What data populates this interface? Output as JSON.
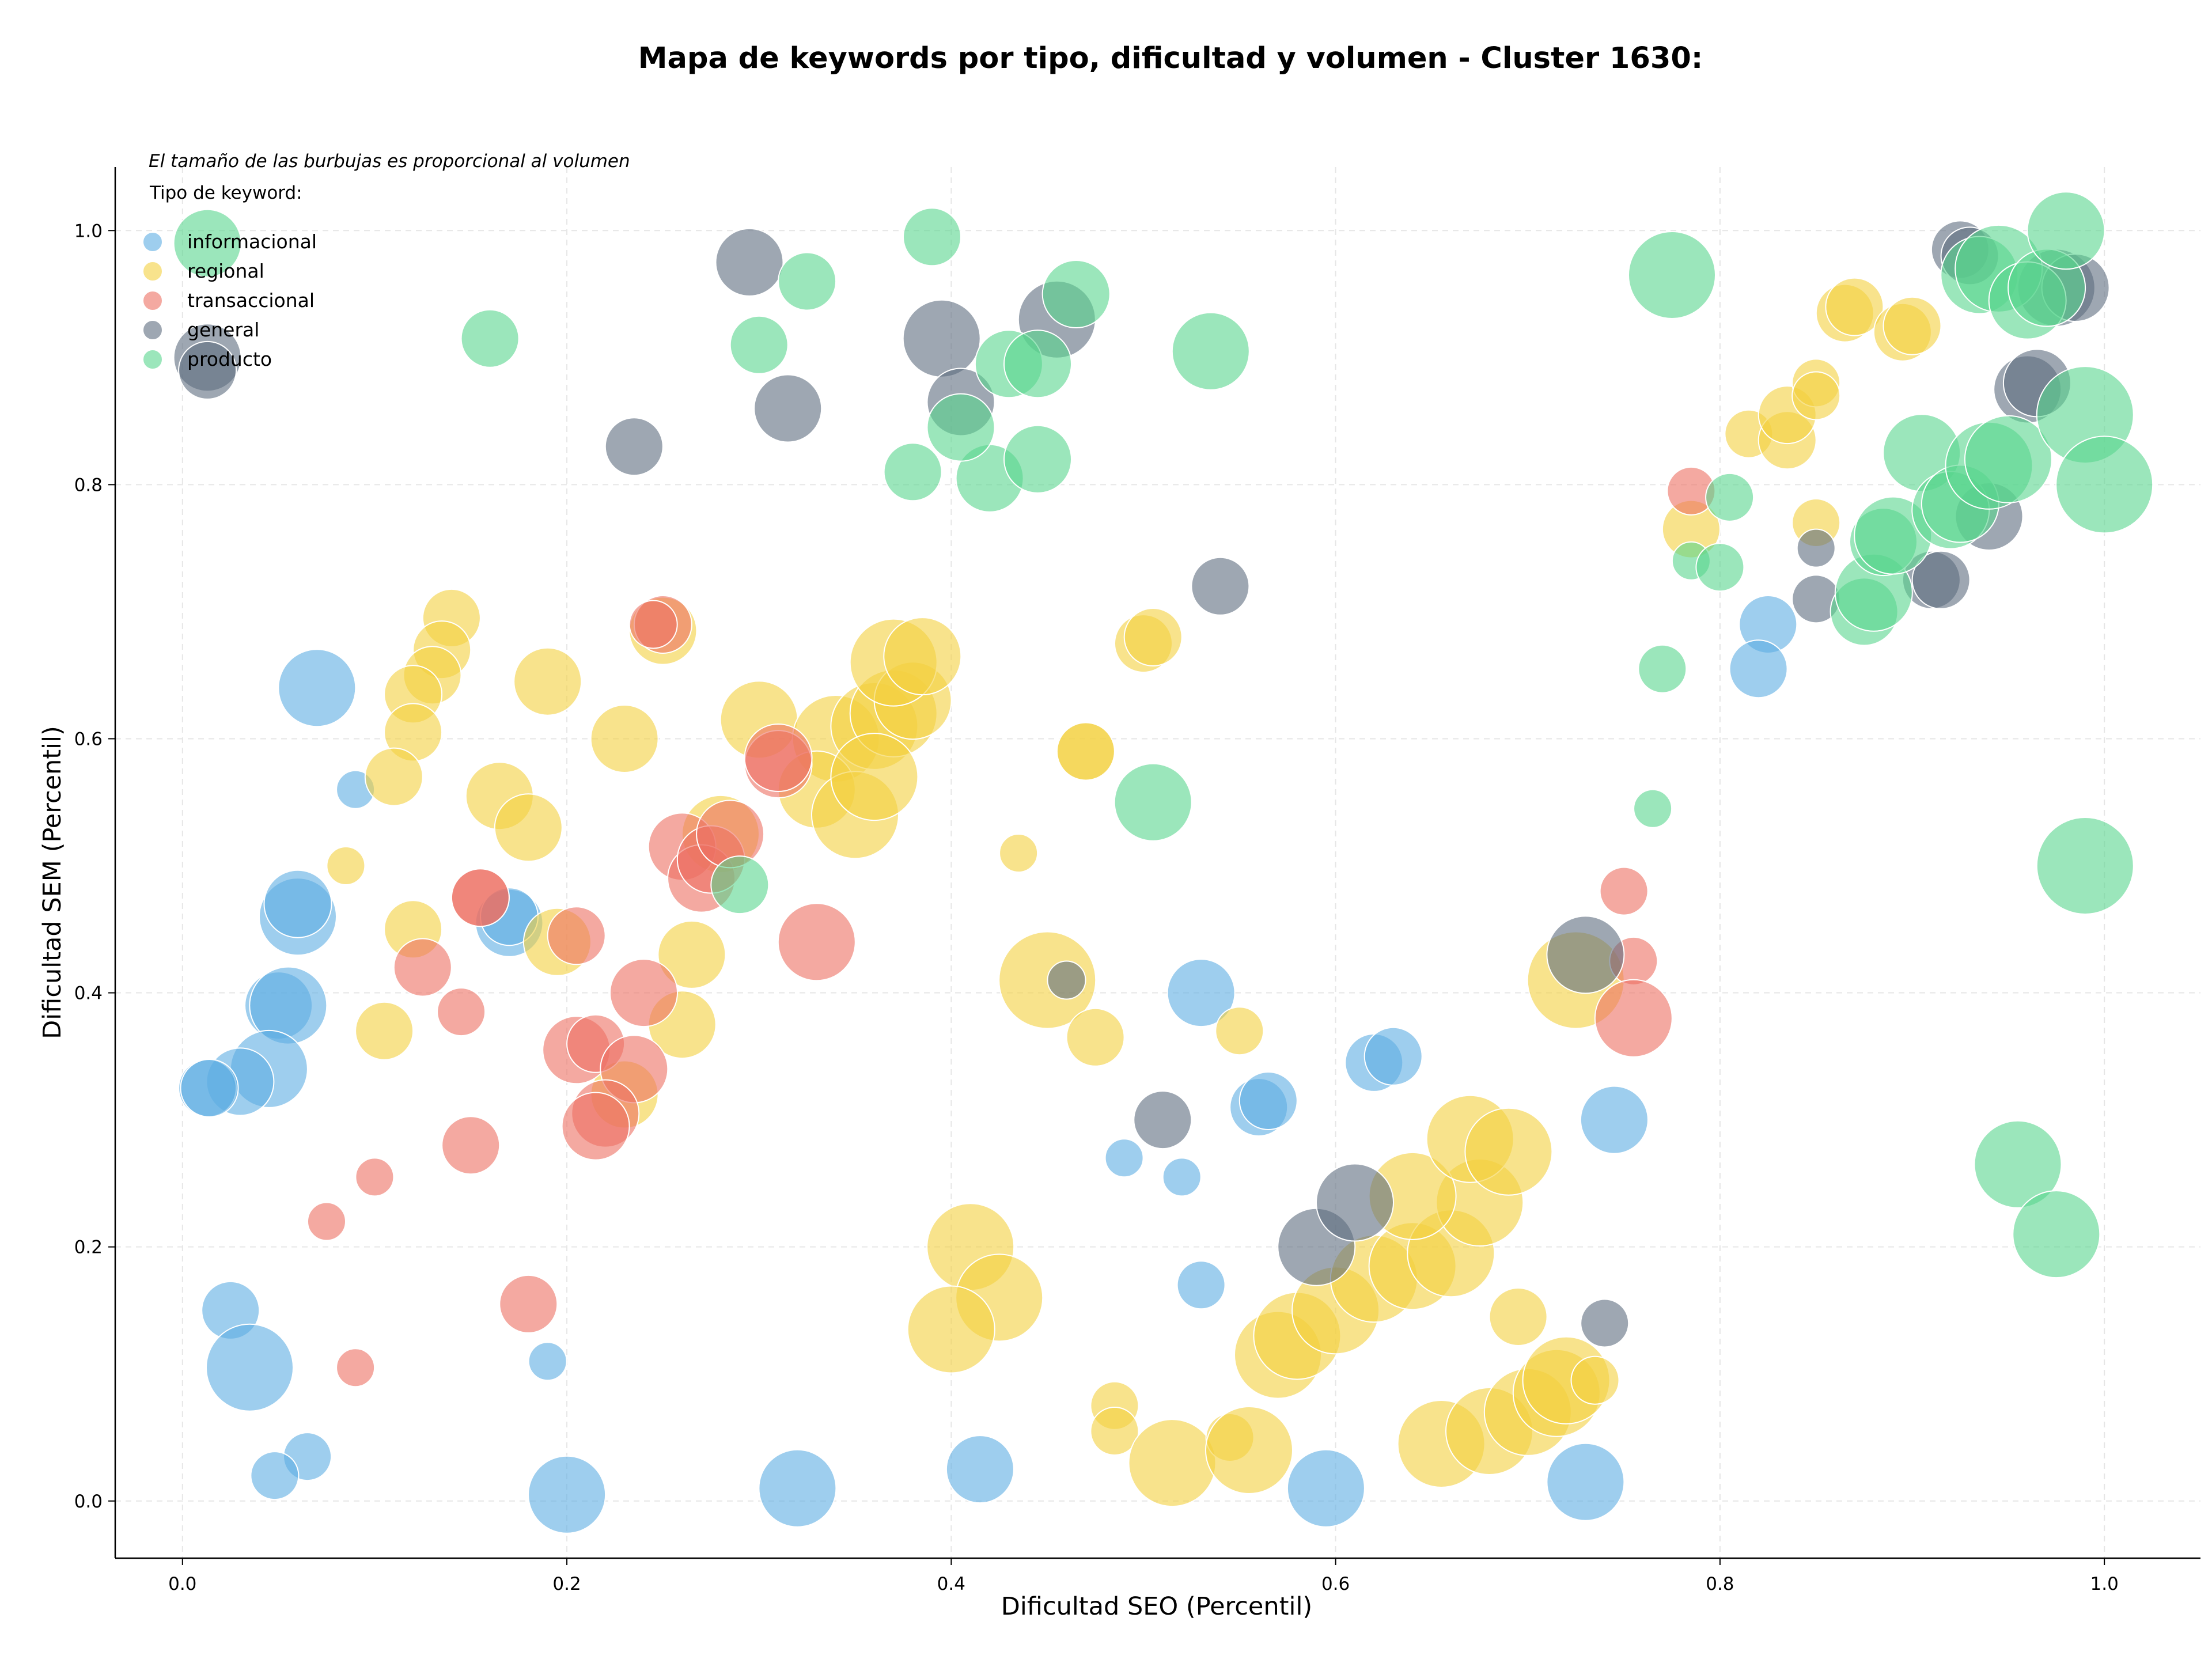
{
  "chart_data": {
    "type": "scatter",
    "title": "Mapa de keywords por tipo, dificultad y volumen - Cluster 1630:",
    "xlabel": "Dificultad SEO (Percentil)",
    "ylabel": "Dificultad SEM (Percentil)",
    "xlim": [
      -0.035,
      1.05
    ],
    "ylim": [
      -0.045,
      1.05
    ],
    "xticks": [
      "0.0",
      "0.2",
      "0.4",
      "0.6",
      "0.8",
      "1.0"
    ],
    "yticks": [
      "0.0",
      "0.2",
      "0.4",
      "0.6",
      "0.8",
      "1.0"
    ],
    "grid": true,
    "size_note": "El tamaño de las burbujas es proporcional al volumen",
    "legend": {
      "title": "Tipo de keyword:",
      "placement": "top-left"
    },
    "series": [
      {
        "name": "informacional",
        "color": "#5DADE2",
        "points": [
          [
            0.07,
            0.64,
            6
          ],
          [
            0.09,
            0.56,
            2
          ],
          [
            0.06,
            0.46,
            6
          ],
          [
            0.06,
            0.47,
            5
          ],
          [
            0.05,
            0.39,
            5
          ],
          [
            0.055,
            0.39,
            6
          ],
          [
            0.045,
            0.34,
            6
          ],
          [
            0.03,
            0.33,
            5
          ],
          [
            0.013,
            0.325,
            4
          ],
          [
            0.014,
            0.325,
            4
          ],
          [
            0.17,
            0.455,
            5
          ],
          [
            0.17,
            0.46,
            4
          ],
          [
            0.025,
            0.15,
            4
          ],
          [
            0.035,
            0.105,
            7
          ],
          [
            0.065,
            0.035,
            3
          ],
          [
            0.048,
            0.02,
            3
          ],
          [
            0.19,
            0.11,
            2
          ],
          [
            0.2,
            0.005,
            6
          ],
          [
            0.32,
            0.01,
            6
          ],
          [
            0.415,
            0.025,
            5
          ],
          [
            0.595,
            0.01,
            6
          ],
          [
            0.73,
            0.015,
            6
          ],
          [
            0.53,
            0.4,
            5
          ],
          [
            0.56,
            0.31,
            4
          ],
          [
            0.565,
            0.315,
            4
          ],
          [
            0.62,
            0.345,
            4
          ],
          [
            0.63,
            0.35,
            4
          ],
          [
            0.49,
            0.27,
            2
          ],
          [
            0.52,
            0.255,
            2
          ],
          [
            0.53,
            0.17,
            3
          ],
          [
            0.745,
            0.3,
            5
          ],
          [
            0.825,
            0.69,
            4
          ],
          [
            0.82,
            0.655,
            4
          ]
        ]
      },
      {
        "name": "regional",
        "color": "#F4D03F",
        "points": [
          [
            0.14,
            0.695,
            4
          ],
          [
            0.135,
            0.67,
            4
          ],
          [
            0.13,
            0.65,
            4
          ],
          [
            0.12,
            0.635,
            4
          ],
          [
            0.12,
            0.605,
            4
          ],
          [
            0.11,
            0.57,
            4
          ],
          [
            0.085,
            0.5,
            2
          ],
          [
            0.165,
            0.555,
            5
          ],
          [
            0.18,
            0.53,
            5
          ],
          [
            0.19,
            0.645,
            5
          ],
          [
            0.23,
            0.6,
            5
          ],
          [
            0.25,
            0.685,
            5
          ],
          [
            0.12,
            0.45,
            4
          ],
          [
            0.105,
            0.37,
            4
          ],
          [
            0.195,
            0.44,
            5
          ],
          [
            0.265,
            0.43,
            5
          ],
          [
            0.26,
            0.375,
            5
          ],
          [
            0.23,
            0.32,
            5
          ],
          [
            0.28,
            0.525,
            6
          ],
          [
            0.3,
            0.615,
            6
          ],
          [
            0.34,
            0.6,
            7
          ],
          [
            0.36,
            0.61,
            7
          ],
          [
            0.37,
            0.62,
            7
          ],
          [
            0.38,
            0.63,
            6
          ],
          [
            0.37,
            0.66,
            7
          ],
          [
            0.385,
            0.665,
            6
          ],
          [
            0.33,
            0.56,
            6
          ],
          [
            0.35,
            0.54,
            7
          ],
          [
            0.36,
            0.57,
            7
          ],
          [
            0.435,
            0.51,
            2
          ],
          [
            0.47,
            0.59,
            4
          ],
          [
            0.47,
            0.59,
            4
          ],
          [
            0.5,
            0.675,
            4
          ],
          [
            0.505,
            0.68,
            4
          ],
          [
            0.45,
            0.41,
            8
          ],
          [
            0.475,
            0.365,
            4
          ],
          [
            0.55,
            0.37,
            3
          ],
          [
            0.41,
            0.2,
            7
          ],
          [
            0.425,
            0.16,
            7
          ],
          [
            0.4,
            0.135,
            7
          ],
          [
            0.485,
            0.075,
            3
          ],
          [
            0.485,
            0.055,
            3
          ],
          [
            0.515,
            0.03,
            7
          ],
          [
            0.545,
            0.05,
            3
          ],
          [
            0.555,
            0.04,
            7
          ],
          [
            0.57,
            0.115,
            7
          ],
          [
            0.58,
            0.13,
            7
          ],
          [
            0.6,
            0.15,
            7
          ],
          [
            0.62,
            0.175,
            7
          ],
          [
            0.64,
            0.185,
            7
          ],
          [
            0.66,
            0.195,
            7
          ],
          [
            0.675,
            0.235,
            7
          ],
          [
            0.64,
            0.24,
            7
          ],
          [
            0.67,
            0.285,
            7
          ],
          [
            0.69,
            0.275,
            7
          ],
          [
            0.655,
            0.045,
            7
          ],
          [
            0.68,
            0.055,
            7
          ],
          [
            0.7,
            0.07,
            7
          ],
          [
            0.715,
            0.085,
            7
          ],
          [
            0.72,
            0.095,
            7
          ],
          [
            0.735,
            0.095,
            3
          ],
          [
            0.695,
            0.145,
            4
          ],
          [
            0.725,
            0.41,
            8
          ],
          [
            0.785,
            0.765,
            4
          ],
          [
            0.815,
            0.84,
            3
          ],
          [
            0.835,
            0.835,
            4
          ],
          [
            0.835,
            0.855,
            4
          ],
          [
            0.85,
            0.88,
            3
          ],
          [
            0.85,
            0.87,
            3
          ],
          [
            0.865,
            0.935,
            4
          ],
          [
            0.87,
            0.94,
            4
          ],
          [
            0.895,
            0.92,
            4
          ],
          [
            0.9,
            0.925,
            4
          ],
          [
            0.85,
            0.77,
            3
          ]
        ]
      },
      {
        "name": "transaccional",
        "color": "#EC7063",
        "points": [
          [
            0.25,
            0.69,
            4
          ],
          [
            0.245,
            0.69,
            3
          ],
          [
            0.155,
            0.475,
            4
          ],
          [
            0.155,
            0.475,
            4
          ],
          [
            0.125,
            0.42,
            4
          ],
          [
            0.145,
            0.385,
            3
          ],
          [
            0.205,
            0.445,
            4
          ],
          [
            0.205,
            0.355,
            5
          ],
          [
            0.215,
            0.36,
            4
          ],
          [
            0.24,
            0.4,
            5
          ],
          [
            0.235,
            0.34,
            5
          ],
          [
            0.22,
            0.305,
            5
          ],
          [
            0.215,
            0.295,
            5
          ],
          [
            0.26,
            0.515,
            5
          ],
          [
            0.27,
            0.49,
            5
          ],
          [
            0.275,
            0.505,
            5
          ],
          [
            0.285,
            0.525,
            5
          ],
          [
            0.31,
            0.58,
            5
          ],
          [
            0.31,
            0.585,
            5
          ],
          [
            0.33,
            0.44,
            6
          ],
          [
            0.15,
            0.28,
            4
          ],
          [
            0.1,
            0.255,
            2
          ],
          [
            0.075,
            0.22,
            2
          ],
          [
            0.09,
            0.105,
            2
          ],
          [
            0.18,
            0.155,
            4
          ],
          [
            0.75,
            0.48,
            3
          ],
          [
            0.755,
            0.425,
            3
          ],
          [
            0.755,
            0.38,
            6
          ],
          [
            0.785,
            0.795,
            3
          ]
        ]
      },
      {
        "name": "general",
        "color": "#5D6D7E",
        "points": [
          [
            0.013,
            0.9,
            5
          ],
          [
            0.013,
            0.89,
            4
          ],
          [
            0.295,
            0.975,
            5
          ],
          [
            0.315,
            0.86,
            5
          ],
          [
            0.235,
            0.83,
            4
          ],
          [
            0.395,
            0.915,
            6
          ],
          [
            0.405,
            0.865,
            5
          ],
          [
            0.455,
            0.93,
            6
          ],
          [
            0.54,
            0.72,
            4
          ],
          [
            0.46,
            0.41,
            2
          ],
          [
            0.51,
            0.3,
            4
          ],
          [
            0.59,
            0.2,
            6
          ],
          [
            0.61,
            0.235,
            6
          ],
          [
            0.73,
            0.43,
            6
          ],
          [
            0.74,
            0.14,
            3
          ],
          [
            0.85,
            0.75,
            2
          ],
          [
            0.85,
            0.71,
            3
          ],
          [
            0.91,
            0.725,
            4
          ],
          [
            0.915,
            0.725,
            4
          ],
          [
            0.94,
            0.775,
            5
          ],
          [
            0.96,
            0.875,
            5
          ],
          [
            0.965,
            0.88,
            5
          ],
          [
            0.925,
            0.985,
            4
          ],
          [
            0.93,
            0.98,
            4
          ],
          [
            0.975,
            0.955,
            6
          ],
          [
            0.985,
            0.955,
            5
          ]
        ]
      },
      {
        "name": "producto",
        "color": "#58D68D",
        "points": [
          [
            0.013,
            0.99,
            5
          ],
          [
            0.16,
            0.915,
            4
          ],
          [
            0.3,
            0.91,
            4
          ],
          [
            0.325,
            0.96,
            4
          ],
          [
            0.39,
            0.995,
            4
          ],
          [
            0.38,
            0.81,
            4
          ],
          [
            0.42,
            0.805,
            5
          ],
          [
            0.405,
            0.845,
            5
          ],
          [
            0.43,
            0.895,
            5
          ],
          [
            0.445,
            0.895,
            5
          ],
          [
            0.445,
            0.82,
            5
          ],
          [
            0.465,
            0.95,
            5
          ],
          [
            0.535,
            0.905,
            6
          ],
          [
            0.505,
            0.55,
            6
          ],
          [
            0.29,
            0.485,
            4
          ],
          [
            0.765,
            0.545,
            2
          ],
          [
            0.77,
            0.655,
            3
          ],
          [
            0.775,
            0.965,
            7
          ],
          [
            0.785,
            0.74,
            2
          ],
          [
            0.8,
            0.735,
            3
          ],
          [
            0.805,
            0.79,
            3
          ],
          [
            0.875,
            0.7,
            5
          ],
          [
            0.88,
            0.715,
            6
          ],
          [
            0.885,
            0.755,
            5
          ],
          [
            0.89,
            0.76,
            6
          ],
          [
            0.905,
            0.825,
            6
          ],
          [
            0.92,
            0.78,
            6
          ],
          [
            0.925,
            0.785,
            6
          ],
          [
            0.935,
            0.965,
            6
          ],
          [
            0.945,
            0.97,
            7
          ],
          [
            0.94,
            0.815,
            7
          ],
          [
            0.95,
            0.82,
            7
          ],
          [
            0.96,
            0.945,
            6
          ],
          [
            0.97,
            0.955,
            6
          ],
          [
            0.98,
            1.0,
            6
          ],
          [
            0.99,
            0.855,
            8
          ],
          [
            1.0,
            0.8,
            8
          ],
          [
            0.99,
            0.5,
            8
          ],
          [
            0.955,
            0.265,
            7
          ],
          [
            0.975,
            0.21,
            7
          ]
        ]
      }
    ]
  }
}
